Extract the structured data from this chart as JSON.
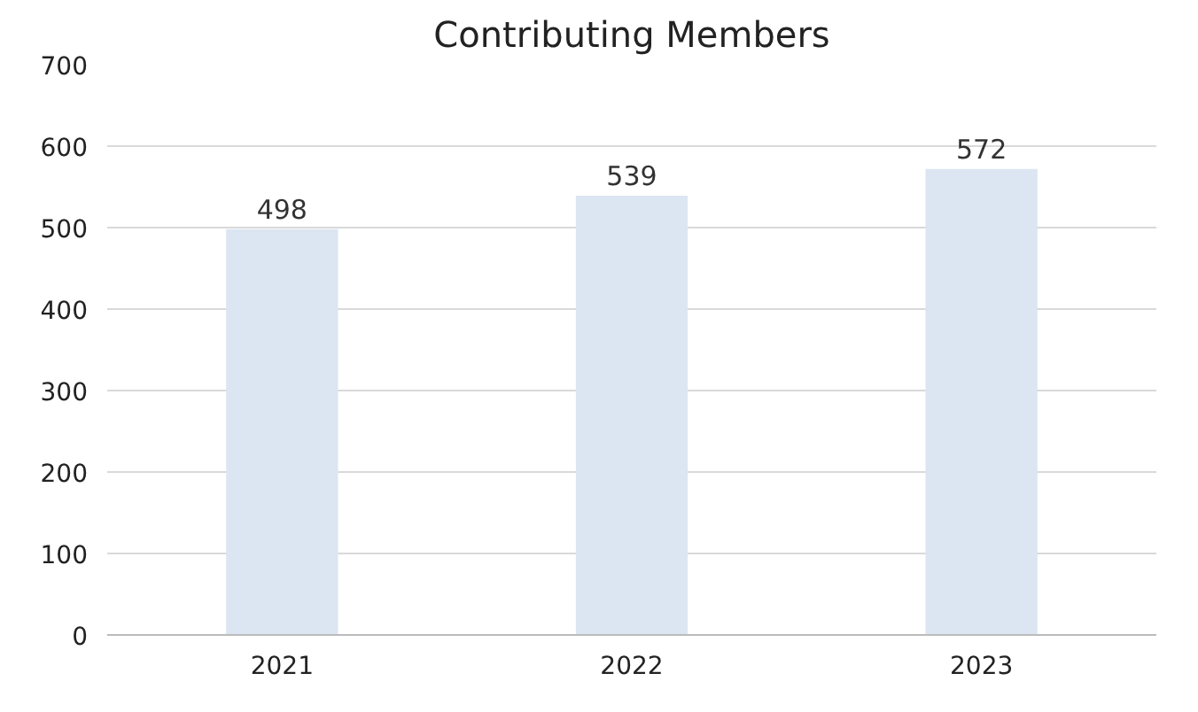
{
  "chart_data": {
    "type": "bar",
    "title": "Contributing Members",
    "categories": [
      "2021",
      "2022",
      "2023"
    ],
    "values": [
      498,
      539,
      572
    ],
    "color": "#dce6f2",
    "ylim": [
      0,
      700
    ],
    "yticks": [
      0,
      100,
      200,
      300,
      400,
      500,
      600,
      700
    ],
    "grid": "y",
    "data_labels": true
  }
}
